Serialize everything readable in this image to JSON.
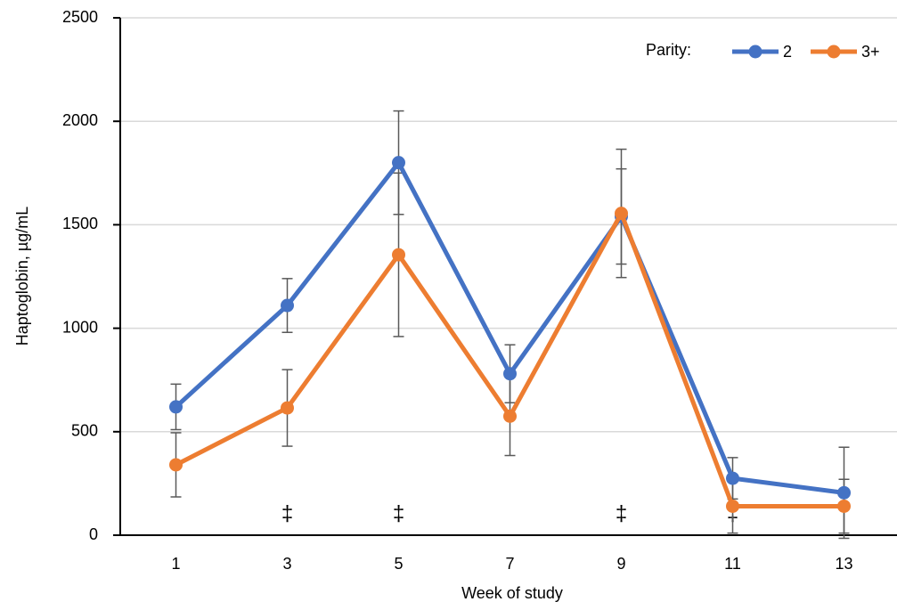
{
  "chart_data": {
    "type": "line",
    "x_label": "Week of study",
    "y_label": "Haptoglobin, µg/mL",
    "legend_title": "Parity:",
    "legend": "top-right",
    "categories": [
      "1",
      "3",
      "5",
      "7",
      "9",
      "11",
      "13"
    ],
    "series": [
      {
        "name": "2",
        "color": "#4472c4",
        "values": [
          620,
          1110,
          1800,
          780,
          1540,
          275,
          205
        ],
        "errors": [
          110,
          130,
          250,
          140,
          230,
          100,
          220
        ]
      },
      {
        "name": "3+",
        "color": "#ed7d31",
        "values": [
          340,
          615,
          1355,
          575,
          1555,
          140,
          140
        ],
        "errors": [
          155,
          185,
          395,
          190,
          310,
          130,
          130
        ]
      }
    ],
    "annotations": [
      null,
      "‡",
      "‡",
      null,
      "‡",
      "‡",
      null
    ],
    "ylim": [
      0,
      2500
    ],
    "yticks": [
      0,
      500,
      1000,
      1500,
      2000,
      2500
    ],
    "grid": true
  }
}
